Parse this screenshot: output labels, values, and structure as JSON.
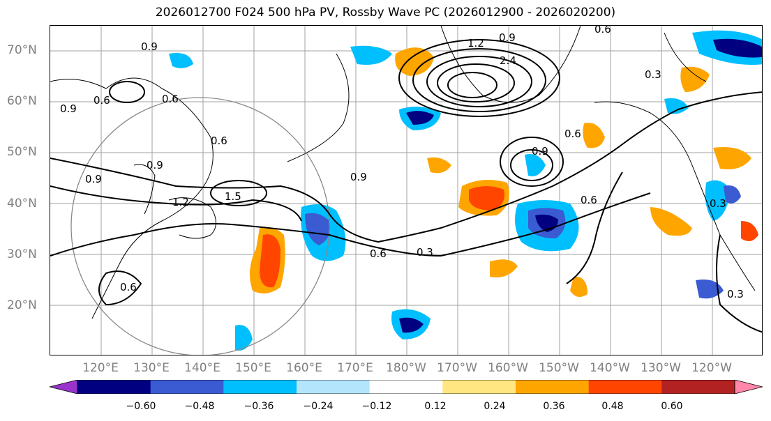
{
  "title": "2026012700 F024 500 hPa PV, Rossby Wave PC (2026012900 - 2026020200)",
  "latitude_labels": [
    "70°N",
    "60°N",
    "50°N",
    "40°N",
    "30°N",
    "20°N"
  ],
  "longitude_labels": [
    "120°E",
    "130°E",
    "140°E",
    "150°E",
    "160°E",
    "170°E",
    "180°W",
    "170°W",
    "160°W",
    "150°W",
    "140°W",
    "130°W",
    "120°W"
  ],
  "colorbar": {
    "ticks": [
      "−0.60",
      "−0.48",
      "−0.36",
      "−0.24",
      "−0.12",
      "0.12",
      "0.24",
      "0.36",
      "0.48",
      "0.60"
    ],
    "colors": [
      "#9933cc",
      "#000080",
      "#3a5bd1",
      "#00bfff",
      "#b3e5fc",
      "#ffffff",
      "#ffe680",
      "#ffa500",
      "#ff4500",
      "#b22222",
      "#ff88aa"
    ]
  },
  "contour_labels": [
    "0.6",
    "0.9",
    "1.2",
    "2.4",
    "0.9",
    "1.5",
    "1.2",
    "0.6",
    "0.9",
    "0.6",
    "0.6",
    "0.9",
    "0.3",
    "0.6",
    "0.9",
    "0.6",
    "0.6",
    "0.3",
    "0.3",
    "0.3",
    "0.9",
    "0.6",
    "0.9"
  ],
  "colors": {
    "land_outline": "#000000",
    "grid": "#a0a0a0",
    "axis_text": "#808080"
  }
}
